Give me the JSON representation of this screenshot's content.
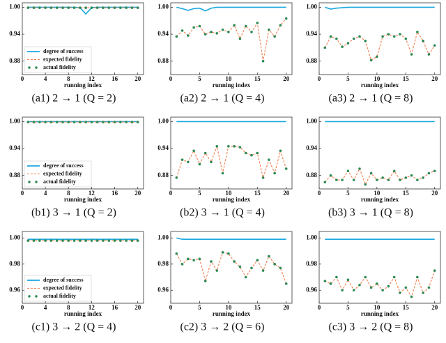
{
  "chart_data": [
    {
      "type": "line",
      "caption": "(a1) 2 → 1 (Q = 2)",
      "xlabel": "running index",
      "legend": true,
      "x": [
        1,
        2,
        3,
        4,
        5,
        6,
        7,
        8,
        9,
        10,
        11,
        12,
        13,
        14,
        15,
        16,
        17,
        18,
        19,
        20
      ],
      "xlim": [
        0,
        21
      ],
      "xticks": [
        0,
        4,
        8,
        12,
        16,
        20
      ],
      "ylim": [
        0.85,
        1.01
      ],
      "yticks": [
        0.88,
        0.94,
        {
          "value": 1,
          "label": "1.00"
        }
      ],
      "series": [
        {
          "name": "degree of success",
          "color": "#1aa7e0",
          "style": "solid",
          "values": [
            1,
            1,
            1,
            1,
            1,
            1,
            1,
            1,
            1,
            0.999,
            0.985,
            0.999,
            1,
            1,
            1,
            1,
            1,
            1,
            1,
            1
          ]
        },
        {
          "name": "expected fidelity",
          "color": "#f07c4a",
          "style": "dashed",
          "values": [
            0.999,
            0.999,
            0.999,
            0.999,
            0.999,
            0.999,
            0.999,
            0.999,
            0.999,
            0.999,
            0.999,
            0.999,
            0.999,
            0.999,
            0.999,
            0.999,
            0.999,
            0.999,
            0.999,
            0.999
          ]
        },
        {
          "name": "actual fidelity",
          "color": "#2e8b57",
          "style": "dots",
          "values": [
            0.999,
            0.999,
            0.999,
            0.999,
            0.999,
            0.999,
            0.999,
            0.999,
            0.999,
            0.999,
            0.999,
            0.999,
            0.999,
            0.999,
            0.999,
            0.999,
            0.999,
            0.999,
            0.999,
            0.999
          ]
        }
      ]
    },
    {
      "type": "line",
      "caption": "(a2) 2 → 1 (Q = 4)",
      "xlabel": "running index",
      "x": [
        1,
        2,
        3,
        4,
        5,
        6,
        7,
        8,
        9,
        10,
        11,
        12,
        13,
        14,
        15,
        16,
        17,
        18,
        19,
        20
      ],
      "xlim": [
        0,
        21
      ],
      "xticks": [
        0,
        5,
        10,
        15,
        20
      ],
      "ylim": [
        0.85,
        1.01
      ],
      "yticks": [
        0.88,
        0.94,
        {
          "value": 1,
          "label": "1.00"
        }
      ],
      "series": [
        {
          "color": "#1aa7e0",
          "style": "solid",
          "values": [
            1,
            0.997,
            0.993,
            0.997,
            0.998,
            0.992,
            0.998,
            1,
            1,
            1,
            1,
            1,
            1,
            1,
            1,
            1,
            1,
            1,
            1,
            1
          ]
        },
        {
          "color": "#f07c4a",
          "style": "dashed",
          "values": [
            0.935,
            0.948,
            0.937,
            0.955,
            0.958,
            0.94,
            0.945,
            0.942,
            0.95,
            0.945,
            0.96,
            0.93,
            0.958,
            0.945,
            0.965,
            0.88,
            0.95,
            0.935,
            0.96,
            0.975
          ]
        },
        {
          "color": "#2e8b57",
          "style": "dots",
          "values": [
            0.935,
            0.948,
            0.937,
            0.955,
            0.958,
            0.94,
            0.945,
            0.942,
            0.95,
            0.945,
            0.96,
            0.93,
            0.958,
            0.945,
            0.965,
            0.88,
            0.95,
            0.935,
            0.96,
            0.975
          ]
        }
      ]
    },
    {
      "type": "line",
      "caption": "(a3) 2 → 1 (Q = 8)",
      "xlabel": "running index",
      "x": [
        1,
        2,
        3,
        4,
        5,
        6,
        7,
        8,
        9,
        10,
        11,
        12,
        13,
        14,
        15,
        16,
        17,
        18,
        19,
        20
      ],
      "xlim": [
        0,
        21
      ],
      "xticks": [
        0,
        5,
        10,
        15,
        20
      ],
      "ylim": [
        0.85,
        1.01
      ],
      "yticks": [
        0.88,
        0.94,
        {
          "value": 1,
          "label": "1.00"
        }
      ],
      "series": [
        {
          "color": "#1aa7e0",
          "style": "solid",
          "values": [
            1,
            0.996,
            0.998,
            0.999,
            1,
            1,
            1,
            1,
            1,
            1,
            1,
            1,
            1,
            1,
            1,
            1,
            1,
            1,
            1,
            1
          ]
        },
        {
          "color": "#f07c4a",
          "style": "dashed",
          "values": [
            0.91,
            0.935,
            0.93,
            0.912,
            0.92,
            0.93,
            0.935,
            0.925,
            0.882,
            0.89,
            0.935,
            0.94,
            0.935,
            0.94,
            0.93,
            0.895,
            0.945,
            0.925,
            0.895,
            0.915
          ]
        },
        {
          "color": "#2e8b57",
          "style": "dots",
          "values": [
            0.91,
            0.935,
            0.93,
            0.912,
            0.92,
            0.93,
            0.935,
            0.925,
            0.882,
            0.89,
            0.935,
            0.94,
            0.935,
            0.94,
            0.93,
            0.895,
            0.945,
            0.925,
            0.895,
            0.915
          ]
        }
      ]
    },
    {
      "type": "line",
      "caption": "(b1) 3 → 1 (Q = 2)",
      "xlabel": "running index",
      "legend": true,
      "x": [
        1,
        2,
        3,
        4,
        5,
        6,
        7,
        8,
        9,
        10,
        11,
        12,
        13,
        14,
        15,
        16,
        17,
        18,
        19,
        20
      ],
      "xlim": [
        0,
        21
      ],
      "xticks": [
        0,
        4,
        8,
        12,
        16,
        20
      ],
      "ylim": [
        0.85,
        1.01
      ],
      "yticks": [
        0.88,
        0.94,
        {
          "value": 1,
          "label": "1.00"
        }
      ],
      "series": [
        {
          "name": "degree of success",
          "color": "#1aa7e0",
          "style": "solid",
          "values": [
            1,
            1,
            1,
            1,
            1,
            1,
            1,
            1,
            1,
            1,
            1,
            1,
            1,
            1,
            1,
            1,
            1,
            1,
            1,
            1
          ]
        },
        {
          "name": "expected fidelity",
          "color": "#f07c4a",
          "style": "dashed",
          "values": [
            0.999,
            0.999,
            0.999,
            0.999,
            0.999,
            0.999,
            0.999,
            0.999,
            0.999,
            0.999,
            0.999,
            0.999,
            0.999,
            0.999,
            0.999,
            0.999,
            0.999,
            0.999,
            0.999,
            0.999
          ]
        },
        {
          "name": "actual fidelity",
          "color": "#2e8b57",
          "style": "dots",
          "values": [
            0.999,
            0.999,
            0.999,
            0.999,
            0.999,
            0.999,
            0.999,
            0.999,
            0.999,
            0.999,
            0.999,
            0.999,
            0.999,
            0.999,
            0.999,
            0.999,
            0.999,
            0.999,
            0.999,
            0.999
          ]
        }
      ]
    },
    {
      "type": "line",
      "caption": "(b2) 3 → 1 (Q = 4)",
      "xlabel": "running index",
      "x": [
        1,
        2,
        3,
        4,
        5,
        6,
        7,
        8,
        9,
        10,
        11,
        12,
        13,
        14,
        15,
        16,
        17,
        18,
        19,
        20
      ],
      "xlim": [
        0,
        21
      ],
      "xticks": [
        0,
        5,
        10,
        15,
        20
      ],
      "ylim": [
        0.85,
        1.01
      ],
      "yticks": [
        0.88,
        0.94,
        {
          "value": 1,
          "label": "1.00"
        }
      ],
      "series": [
        {
          "color": "#1aa7e0",
          "style": "solid",
          "values": [
            1,
            1,
            1,
            1,
            1,
            1,
            1,
            1,
            1,
            1,
            1,
            1,
            1,
            1,
            1,
            1,
            1,
            1,
            1,
            1
          ]
        },
        {
          "color": "#f07c4a",
          "style": "dashed",
          "values": [
            0.875,
            0.915,
            0.91,
            0.935,
            0.905,
            0.93,
            0.91,
            0.945,
            0.885,
            0.945,
            0.945,
            0.943,
            0.93,
            0.925,
            0.93,
            0.875,
            0.915,
            0.885,
            0.935,
            0.895
          ]
        },
        {
          "color": "#2e8b57",
          "style": "dots",
          "values": [
            0.875,
            0.915,
            0.91,
            0.935,
            0.905,
            0.93,
            0.91,
            0.945,
            0.885,
            0.945,
            0.945,
            0.943,
            0.93,
            0.925,
            0.93,
            0.875,
            0.915,
            0.885,
            0.935,
            0.895
          ]
        }
      ]
    },
    {
      "type": "line",
      "caption": "(b3) 3 → 1 (Q = 8)",
      "xlabel": "running index",
      "x": [
        1,
        2,
        3,
        4,
        5,
        6,
        7,
        8,
        9,
        10,
        11,
        12,
        13,
        14,
        15,
        16,
        17,
        18,
        19,
        20
      ],
      "xlim": [
        0,
        21
      ],
      "xticks": [
        0,
        5,
        10,
        15,
        20
      ],
      "ylim": [
        0.85,
        1.01
      ],
      "yticks": [
        0.88,
        0.94,
        {
          "value": 1,
          "label": "1.00"
        }
      ],
      "series": [
        {
          "color": "#1aa7e0",
          "style": "solid",
          "values": [
            1,
            1,
            1,
            1,
            1,
            1,
            1,
            1,
            1,
            1,
            1,
            1,
            1,
            1,
            1,
            1,
            1,
            1,
            1,
            1
          ]
        },
        {
          "color": "#f07c4a",
          "style": "dashed",
          "values": [
            0.865,
            0.88,
            0.87,
            0.87,
            0.89,
            0.87,
            0.895,
            0.86,
            0.885,
            0.87,
            0.875,
            0.87,
            0.89,
            0.87,
            0.875,
            0.88,
            0.87,
            0.875,
            0.885,
            0.89
          ]
        },
        {
          "color": "#2e8b57",
          "style": "dots",
          "values": [
            0.865,
            0.88,
            0.87,
            0.87,
            0.89,
            0.87,
            0.895,
            0.86,
            0.885,
            0.87,
            0.875,
            0.87,
            0.89,
            0.87,
            0.875,
            0.88,
            0.87,
            0.875,
            0.885,
            0.89
          ]
        }
      ]
    },
    {
      "type": "line",
      "caption": "(c1) 3 → 2 (Q = 4)",
      "xlabel": "running index",
      "legend": true,
      "x": [
        1,
        2,
        3,
        4,
        5,
        6,
        7,
        8,
        9,
        10,
        11,
        12,
        13,
        14,
        15,
        16,
        17,
        18,
        19,
        20
      ],
      "xlim": [
        0,
        21
      ],
      "xticks": [
        0,
        4,
        8,
        12,
        16,
        20
      ],
      "ylim": [
        0.95,
        1.005
      ],
      "yticks": [
        0.96,
        0.98,
        {
          "value": 1,
          "label": "1.00"
        }
      ],
      "series": [
        {
          "name": "degree of success",
          "color": "#1aa7e0",
          "style": "solid",
          "values": [
            0.999,
            0.999,
            0.999,
            0.999,
            0.999,
            0.999,
            0.999,
            0.999,
            0.999,
            0.999,
            0.999,
            0.999,
            0.999,
            0.999,
            0.999,
            0.999,
            0.999,
            0.999,
            0.999,
            0.999
          ]
        },
        {
          "name": "expected fidelity",
          "color": "#f07c4a",
          "style": "dashed",
          "values": [
            0.998,
            0.998,
            0.998,
            0.998,
            0.998,
            0.998,
            0.998,
            0.998,
            0.998,
            0.998,
            0.998,
            0.998,
            0.998,
            0.998,
            0.998,
            0.998,
            0.998,
            0.998,
            0.998,
            0.998
          ]
        },
        {
          "name": "actual fidelity",
          "color": "#2e8b57",
          "style": "dots",
          "values": [
            0.998,
            0.998,
            0.998,
            0.998,
            0.998,
            0.998,
            0.998,
            0.998,
            0.998,
            0.998,
            0.998,
            0.998,
            0.998,
            0.998,
            0.998,
            0.998,
            0.998,
            0.998,
            0.998,
            0.998
          ]
        }
      ]
    },
    {
      "type": "line",
      "caption": "(c2) 3 → 2 (Q = 6)",
      "xlabel": "running index",
      "x": [
        1,
        2,
        3,
        4,
        5,
        6,
        7,
        8,
        9,
        10,
        11,
        12,
        13,
        14,
        15,
        16,
        17,
        18,
        19,
        20
      ],
      "xlim": [
        0,
        21
      ],
      "xticks": [
        0,
        5,
        10,
        15,
        20
      ],
      "ylim": [
        0.95,
        1.005
      ],
      "yticks": [
        0.96,
        0.98,
        {
          "value": 1,
          "label": "1.00"
        }
      ],
      "series": [
        {
          "color": "#1aa7e0",
          "style": "solid",
          "values": [
            1,
            0.999,
            0.999,
            0.999,
            0.999,
            0.999,
            0.999,
            0.999,
            0.999,
            0.999,
            0.999,
            0.999,
            0.999,
            0.999,
            0.999,
            0.999,
            0.999,
            0.999,
            0.999,
            0.999
          ]
        },
        {
          "color": "#f07c4a",
          "style": "dashed",
          "values": [
            0.988,
            0.98,
            0.984,
            0.983,
            0.984,
            0.967,
            0.982,
            0.975,
            0.989,
            0.988,
            0.982,
            0.978,
            0.97,
            0.977,
            0.983,
            0.975,
            0.986,
            0.98,
            0.977,
            0.965
          ]
        },
        {
          "color": "#2e8b57",
          "style": "dots",
          "values": [
            0.988,
            0.98,
            0.984,
            0.983,
            0.984,
            0.967,
            0.982,
            0.975,
            0.989,
            0.988,
            0.982,
            0.978,
            0.97,
            0.977,
            0.983,
            0.975,
            0.986,
            0.98,
            0.977,
            0.965
          ]
        }
      ]
    },
    {
      "type": "line",
      "caption": "(c3) 3 → 2 (Q = 8)",
      "xlabel": "running index",
      "x": [
        1,
        2,
        3,
        4,
        5,
        6,
        7,
        8,
        9,
        10,
        11,
        12,
        13,
        14,
        15,
        16,
        17,
        18,
        19,
        20
      ],
      "xlim": [
        0,
        21
      ],
      "xticks": [
        0,
        5,
        10,
        15,
        20
      ],
      "ylim": [
        0.95,
        1.005
      ],
      "yticks": [
        0.96,
        0.98,
        {
          "value": 1,
          "label": "1.00"
        }
      ],
      "series": [
        {
          "color": "#1aa7e0",
          "style": "solid",
          "values": [
            0.999,
            0.999,
            0.999,
            0.999,
            0.999,
            0.999,
            0.999,
            0.999,
            0.999,
            0.999,
            0.999,
            0.999,
            0.999,
            0.999,
            0.999,
            0.999,
            0.999,
            0.999,
            0.999,
            0.999
          ]
        },
        {
          "color": "#f07c4a",
          "style": "dashed",
          "values": [
            0.967,
            0.965,
            0.97,
            0.96,
            0.968,
            0.96,
            0.964,
            0.97,
            0.962,
            0.965,
            0.96,
            0.963,
            0.97,
            0.958,
            0.962,
            0.955,
            0.97,
            0.958,
            0.962,
            0.975
          ]
        },
        {
          "color": "#2e8b57",
          "style": "dots",
          "values": [
            0.967,
            0.965,
            0.97,
            0.96,
            0.968,
            0.96,
            0.964,
            0.97,
            0.962,
            0.965,
            0.96,
            0.963,
            0.97,
            0.958,
            0.962,
            0.955,
            0.97,
            0.958,
            0.962,
            0.975
          ]
        }
      ]
    }
  ]
}
